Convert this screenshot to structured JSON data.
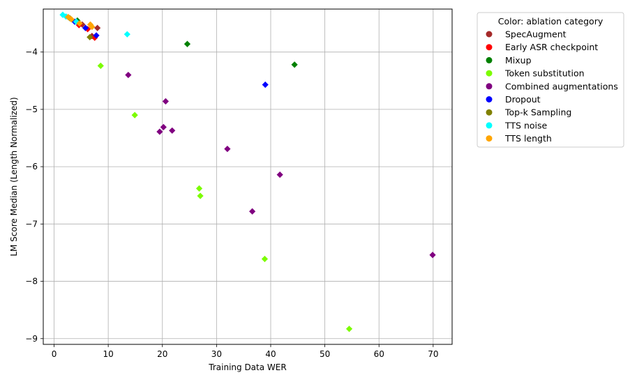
{
  "chart_data": {
    "type": "scatter",
    "xlabel": "Training Data WER",
    "ylabel": "LM Score Median (Length Normalized)",
    "xlim": [
      -2,
      73.5
    ],
    "ylim": [
      -9.1,
      -3.25
    ],
    "xticks": [
      0,
      10,
      20,
      30,
      40,
      50,
      60,
      70
    ],
    "yticks": [
      -4,
      -5,
      -6,
      -7,
      -8,
      -9
    ],
    "grid": true,
    "marker": "diamond",
    "legend": {
      "title": "Color: ablation category",
      "position": "outside-top-right"
    },
    "series": [
      {
        "name": "SpecAugment",
        "color": "#a52a2a",
        "points": [
          [
            5.2,
            -3.52
          ],
          [
            8.0,
            -3.58
          ],
          [
            7.0,
            -3.72
          ]
        ]
      },
      {
        "name": "Early ASR checkpoint",
        "color": "#ff0000",
        "points": [
          [
            4.6,
            -3.53
          ],
          [
            6.2,
            -3.6
          ],
          [
            7.5,
            -3.75
          ]
        ]
      },
      {
        "name": "Mixup",
        "color": "#008000",
        "points": [
          [
            24.6,
            -3.86
          ],
          [
            44.4,
            -4.22
          ],
          [
            4.3,
            -3.45
          ]
        ]
      },
      {
        "name": "Token substitution",
        "color": "#7cfc00",
        "points": [
          [
            8.6,
            -4.24
          ],
          [
            14.9,
            -5.1
          ],
          [
            26.8,
            -6.38
          ],
          [
            27.0,
            -6.51
          ],
          [
            38.9,
            -7.61
          ],
          [
            54.5,
            -8.83
          ]
        ]
      },
      {
        "name": "Combined augmentations",
        "color": "#800080",
        "points": [
          [
            13.7,
            -4.4
          ],
          [
            20.6,
            -4.86
          ],
          [
            19.5,
            -5.39
          ],
          [
            20.2,
            -5.31
          ],
          [
            21.8,
            -5.37
          ],
          [
            32.0,
            -5.69
          ],
          [
            36.6,
            -6.78
          ],
          [
            41.7,
            -6.14
          ],
          [
            69.9,
            -7.54
          ]
        ]
      },
      {
        "name": "Dropout",
        "color": "#0000ff",
        "points": [
          [
            39.0,
            -4.57
          ],
          [
            5.8,
            -3.58
          ],
          [
            7.8,
            -3.71
          ],
          [
            3.8,
            -3.47
          ]
        ]
      },
      {
        "name": "Top-k Sampling",
        "color": "#808000",
        "points": [
          [
            6.6,
            -3.74
          ],
          [
            2.9,
            -3.41
          ]
        ]
      },
      {
        "name": "TTS noise",
        "color": "#00ffff",
        "points": [
          [
            13.5,
            -3.69
          ],
          [
            1.6,
            -3.35
          ],
          [
            2.2,
            -3.38
          ],
          [
            4.1,
            -3.47
          ]
        ]
      },
      {
        "name": "TTS length",
        "color": "#ffa500",
        "points": [
          [
            2.6,
            -3.39
          ],
          [
            3.2,
            -3.43
          ],
          [
            6.7,
            -3.52
          ],
          [
            7.0,
            -3.56
          ],
          [
            4.7,
            -3.5
          ]
        ]
      }
    ]
  }
}
